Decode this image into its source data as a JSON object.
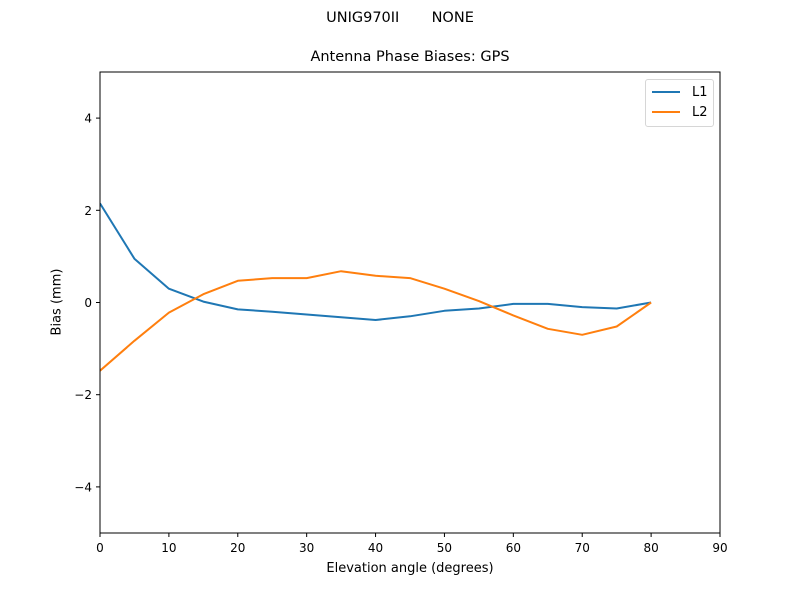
{
  "suptitle": "UNIG970II       NONE",
  "chart_data": {
    "type": "line",
    "title": "Antenna Phase Biases: GPS",
    "xlabel": "Elevation angle (degrees)",
    "ylabel": "Bias (mm)",
    "xlim": [
      0,
      90
    ],
    "ylim": [
      -5,
      5
    ],
    "xticks": [
      0,
      10,
      20,
      30,
      40,
      50,
      60,
      70,
      80,
      90
    ],
    "yticks": [
      -4,
      -2,
      0,
      2,
      4
    ],
    "ytick_labels": [
      "−4",
      "−2",
      "0",
      "2",
      "4"
    ],
    "grid": false,
    "legend_position": "upper right",
    "x": [
      0,
      5,
      10,
      15,
      20,
      25,
      30,
      35,
      40,
      45,
      50,
      55,
      60,
      65,
      70,
      75,
      80
    ],
    "series": [
      {
        "name": "L1",
        "color": "#1f77b4",
        "values": [
          2.15,
          0.95,
          0.3,
          0.02,
          -0.15,
          -0.2,
          -0.26,
          -0.32,
          -0.38,
          -0.3,
          -0.18,
          -0.13,
          -0.03,
          -0.03,
          -0.1,
          -0.13,
          0.0
        ]
      },
      {
        "name": "L2",
        "color": "#ff7f0e",
        "values": [
          -1.48,
          -0.83,
          -0.22,
          0.18,
          0.47,
          0.53,
          0.53,
          0.68,
          0.58,
          0.53,
          0.3,
          0.03,
          -0.28,
          -0.57,
          -0.7,
          -0.52,
          0.0
        ]
      }
    ]
  }
}
